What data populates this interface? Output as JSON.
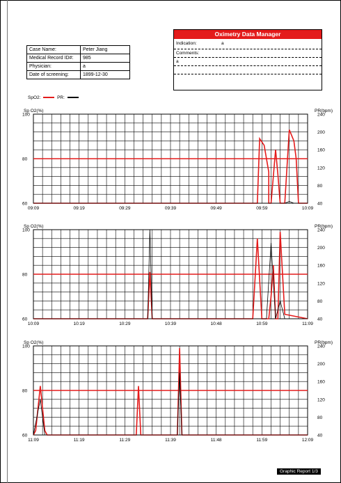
{
  "case": {
    "rows": [
      {
        "label": "Case Name:",
        "value": "Peter Jiang"
      },
      {
        "label": "Medical Record ID#:",
        "value": "985"
      },
      {
        "label": "Physician:",
        "value": "a"
      },
      {
        "label": "Date of screening:",
        "value": "1899-12-30"
      }
    ]
  },
  "oximetry": {
    "title": "Oximetry Data Manager",
    "indication_label": "Indication:",
    "indication_value": "a",
    "comments_label": "Comments:",
    "comments_value": "a"
  },
  "legend": {
    "spo2_label": "SpO2:",
    "pr_label": "PR:",
    "spo2_color": "#e41b1b",
    "pr_color": "#000000"
  },
  "footer": "Graphic Report 1/3",
  "chart_data": [
    {
      "type": "line",
      "ylabel_left": "Sp O2(%)",
      "ylabel_right": "PR(bpm)",
      "left_ticks": [
        "100",
        "80",
        "60"
      ],
      "right_ticks": [
        "240",
        "200",
        "160",
        "120",
        "80",
        "40"
      ],
      "ylim_left": [
        60,
        100
      ],
      "ylim_right": [
        40,
        240
      ],
      "xticks": [
        "09:09",
        "09:19",
        "09:29",
        "09:39",
        "09:49",
        "09:59",
        "10:09"
      ],
      "threshold_spo2": 80,
      "series": [
        {
          "name": "SpO2",
          "color": "#e41b1b",
          "points": [
            [
              0,
              60
            ],
            [
              49,
              60
            ],
            [
              49.5,
              89
            ],
            [
              50.5,
              86
            ],
            [
              51.5,
              74
            ],
            [
              51.5,
              60
            ],
            [
              52,
              60
            ],
            [
              53,
              84
            ],
            [
              53.5,
              73
            ],
            [
              54,
              60
            ],
            [
              55,
              60
            ],
            [
              56,
              93
            ],
            [
              57,
              88
            ],
            [
              57.5,
              80
            ],
            [
              58,
              60
            ],
            [
              60,
              60
            ]
          ]
        },
        {
          "name": "PR",
          "color": "#000000",
          "points": [
            [
              0,
              40
            ],
            [
              55,
              40
            ],
            [
              56,
              44
            ],
            [
              57,
              40
            ],
            [
              60,
              40
            ]
          ]
        }
      ]
    },
    {
      "type": "line",
      "ylabel_left": "Sp O2(%)",
      "ylabel_right": "PR(bpm)",
      "left_ticks": [
        "100",
        "80",
        "60"
      ],
      "right_ticks": [
        "240",
        "200",
        "160",
        "120",
        "80",
        "40"
      ],
      "ylim_left": [
        60,
        100
      ],
      "ylim_right": [
        40,
        240
      ],
      "xticks": [
        "10:09",
        "10:19",
        "10:29",
        "10:39",
        "10:48",
        "10:59",
        "11:09"
      ],
      "threshold_spo2": 80,
      "series": [
        {
          "name": "SpO2",
          "color": "#e41b1b",
          "points": [
            [
              0,
              60
            ],
            [
              25,
              60
            ],
            [
              25.5,
              81
            ],
            [
              26,
              60
            ],
            [
              48,
              60
            ],
            [
              49,
              96
            ],
            [
              50,
              60
            ],
            [
              51.5,
              60
            ],
            [
              52,
              70
            ],
            [
              52.5,
              84
            ],
            [
              53,
              60
            ],
            [
              53.5,
              60
            ],
            [
              54,
              99
            ],
            [
              55,
              62
            ],
            [
              60,
              60
            ]
          ]
        },
        {
          "name": "PR",
          "color": "#000000",
          "points": [
            [
              0,
              40
            ],
            [
              25,
              40
            ],
            [
              25.5,
              240
            ],
            [
              26,
              40
            ],
            [
              51,
              40
            ],
            [
              52,
              210
            ],
            [
              53,
              40
            ],
            [
              54,
              80
            ],
            [
              55,
              40
            ],
            [
              60,
              40
            ]
          ]
        }
      ]
    },
    {
      "type": "line",
      "ylabel_left": "Sp O2(%)",
      "ylabel_right": "PR(bpm)",
      "left_ticks": [
        "100",
        "80",
        "60"
      ],
      "right_ticks": [
        "240",
        "200",
        "160",
        "120",
        "80",
        "40"
      ],
      "ylim_left": [
        60,
        100
      ],
      "ylim_right": [
        40,
        240
      ],
      "xticks": [
        "11:09",
        "11:19",
        "11:29",
        "11:39",
        "11:48",
        "11:59",
        "12:09"
      ],
      "threshold_spo2": 80,
      "series": [
        {
          "name": "SpO2",
          "color": "#e41b1b",
          "points": [
            [
              0,
              60
            ],
            [
              0.5,
              62
            ],
            [
              1.5,
              82
            ],
            [
              2.5,
              62
            ],
            [
              3,
              60
            ],
            [
              22.5,
              60
            ],
            [
              23,
              82
            ],
            [
              23.5,
              60
            ],
            [
              31.5,
              60
            ],
            [
              32,
              99
            ],
            [
              32.5,
              60
            ],
            [
              60,
              60
            ]
          ]
        },
        {
          "name": "PR",
          "color": "#000000",
          "points": [
            [
              0,
              40
            ],
            [
              1.5,
              120
            ],
            [
              2.5,
              40
            ],
            [
              31.5,
              40
            ],
            [
              32,
              180
            ],
            [
              32.5,
              40
            ],
            [
              60,
              40
            ]
          ]
        }
      ]
    }
  ]
}
